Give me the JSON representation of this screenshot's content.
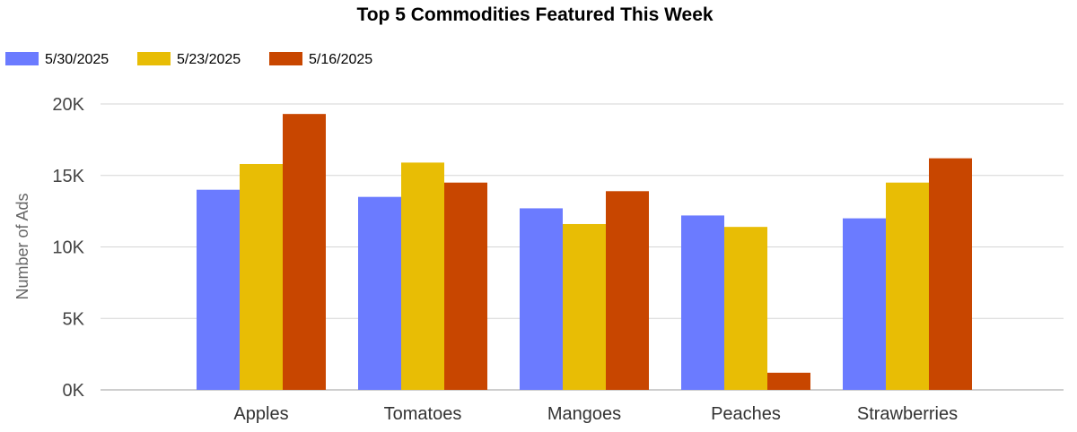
{
  "chart_data": {
    "type": "bar",
    "title": "Top 5 Commodities Featured This Week",
    "ylabel": "Number of Ads",
    "xlabel": "",
    "categories": [
      "Apples",
      "Tomatoes",
      "Mangoes",
      "Peaches",
      "Strawberries"
    ],
    "series": [
      {
        "name": "5/30/2025",
        "color": "#6b7bff",
        "values": [
          14000,
          13500,
          12700,
          12200,
          12000
        ]
      },
      {
        "name": "5/23/2025",
        "color": "#e8bd05",
        "values": [
          15800,
          15900,
          11600,
          11400,
          14500
        ]
      },
      {
        "name": "5/16/2025",
        "color": "#c84600",
        "values": [
          19300,
          14500,
          13900,
          1200,
          16200
        ]
      }
    ],
    "ylim": [
      0,
      20000
    ],
    "yticks": [
      {
        "value": 0,
        "label": "0K"
      },
      {
        "value": 5000,
        "label": "5K"
      },
      {
        "value": 10000,
        "label": "10K"
      },
      {
        "value": 15000,
        "label": "15K"
      },
      {
        "value": 20000,
        "label": "20K"
      }
    ],
    "grid": true,
    "legend_position": "top-left"
  }
}
